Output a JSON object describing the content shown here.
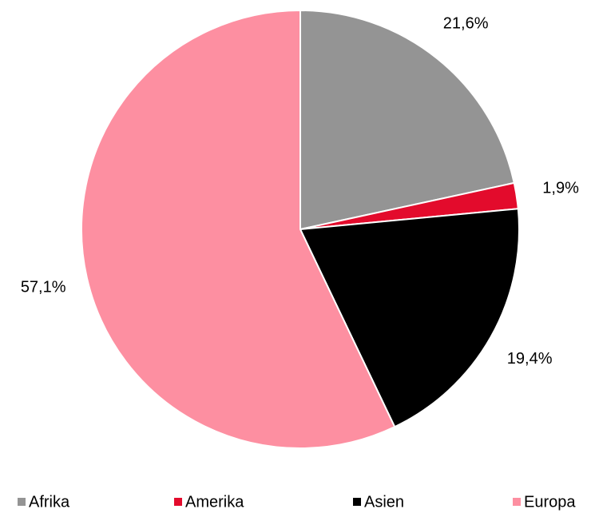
{
  "chart_data": {
    "type": "pie",
    "categories": [
      "Afrika",
      "Amerika",
      "Asien",
      "Europa"
    ],
    "values": [
      21.6,
      1.9,
      19.4,
      57.1
    ],
    "value_labels": [
      "21,6%",
      "1,9%",
      "19,4%",
      "57,1%"
    ],
    "colors": [
      "#949494",
      "#e30b2c",
      "#000000",
      "#fd8fa1"
    ],
    "legend": "bottom"
  }
}
